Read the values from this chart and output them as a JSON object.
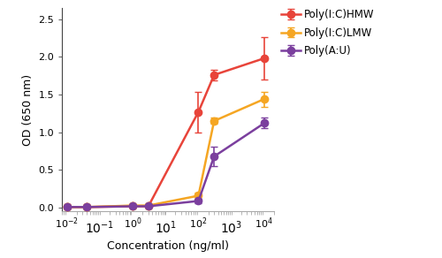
{
  "xlabel": "Concentration (ng/ml)",
  "ylabel": "OD (650 nm)",
  "xlim": [
    0.007,
    20000
  ],
  "ylim": [
    -0.05,
    2.65
  ],
  "yticks": [
    0.0,
    0.5,
    1.0,
    1.5,
    2.0,
    2.5
  ],
  "xticks_major": [
    0.01,
    1.0,
    100,
    10000
  ],
  "xtick_labels": [
    "$10^{-2}$",
    "$10^{0}$",
    "$10^{2}$",
    "$10^{4}$"
  ],
  "series": [
    {
      "label": "Poly(I:C)HMW",
      "color": "#e8443a",
      "x": [
        0.01,
        0.04,
        1.0,
        3.0,
        100,
        300,
        10000
      ],
      "y": [
        0.01,
        0.01,
        0.02,
        0.02,
        1.27,
        1.76,
        1.98
      ],
      "yerr": [
        0.005,
        0.005,
        0.005,
        0.005,
        0.27,
        0.07,
        0.28
      ]
    },
    {
      "label": "Poly(I:C)LMW",
      "color": "#f5a623",
      "x": [
        0.01,
        0.04,
        1.0,
        3.0,
        100,
        300,
        10000
      ],
      "y": [
        0.01,
        0.01,
        0.03,
        0.03,
        0.16,
        1.15,
        1.44
      ],
      "yerr": [
        0.005,
        0.005,
        0.005,
        0.005,
        0.04,
        0.04,
        0.1
      ]
    },
    {
      "label": "Poly(A:U)",
      "color": "#7b3f9e",
      "x": [
        0.01,
        0.04,
        1.0,
        3.0,
        100,
        300,
        10000
      ],
      "y": [
        0.01,
        0.01,
        0.02,
        0.02,
        0.09,
        0.68,
        1.12
      ],
      "yerr": [
        0.005,
        0.005,
        0.005,
        0.005,
        0.03,
        0.13,
        0.07
      ]
    }
  ]
}
